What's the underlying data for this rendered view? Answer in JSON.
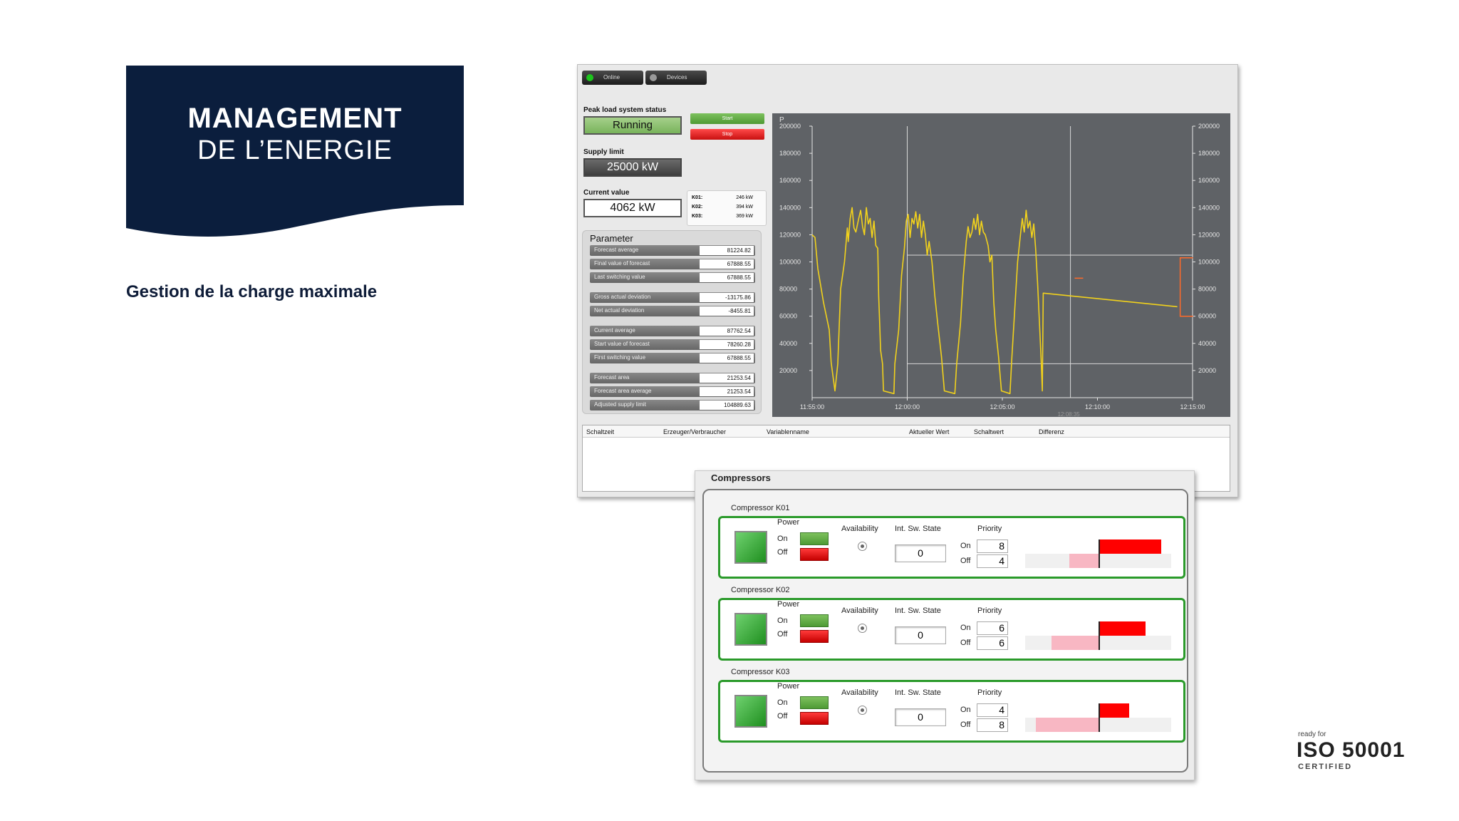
{
  "banner": {
    "line1": "MANAGEMENT",
    "line2": "DE L’ENERGIE",
    "color": "#0b1e3d"
  },
  "subtitle": "Gestion de la charge maximale",
  "iso": {
    "small": "ready for",
    "big": "ISO 50001",
    "certified": "CERTIFIED"
  },
  "app": {
    "topbar": [
      {
        "label": "Online",
        "dot": "#1dc41d"
      },
      {
        "label": "Devices",
        "dot": "#999999"
      }
    ],
    "status_label": "Peak load system status",
    "status_value": "Running",
    "start_label": "Start",
    "stop_label": "Stop",
    "supply_label": "Supply limit",
    "supply_value": "25000 kW",
    "current_label": "Current value",
    "current_value": "4062 kW",
    "k_values": [
      {
        "k": "K01:",
        "v": "246 kW"
      },
      {
        "k": "K02:",
        "v": "394 kW"
      },
      {
        "k": "K03:",
        "v": "369 kW"
      }
    ],
    "parameter_title": "Parameter",
    "parameters": [
      {
        "label": "Forecast average",
        "value": "81224.82"
      },
      {
        "label": "Final value of forecast",
        "value": "67888.55"
      },
      {
        "label": "Last switching value",
        "value": "67888.55"
      },
      {
        "label": "Gross actual deviation",
        "value": "-13175.86"
      },
      {
        "label": "Net actual deviation",
        "value": "-8455.81"
      },
      {
        "label": "Current average",
        "value": "87762.54"
      },
      {
        "label": "Start value of forecast",
        "value": "78260.28"
      },
      {
        "label": "First switching value",
        "value": "67888.55"
      },
      {
        "label": "Forecast area",
        "value": "21253.54"
      },
      {
        "label": "Forecast area average",
        "value": "21253.54"
      },
      {
        "label": "Adjusted supply limit",
        "value": "104889.63"
      }
    ],
    "table_headers": [
      "Schaltzeit",
      "Erzeuger/Verbraucher",
      "Variablenname",
      "Aktueller Wert",
      "Schaltwert",
      "Differenz"
    ]
  },
  "chart_data": {
    "type": "line",
    "ylabel": "P",
    "ylim": [
      0,
      200000
    ],
    "yticks": [
      200000,
      180000,
      160000,
      140000,
      120000,
      100000,
      80000,
      60000,
      40000,
      20000
    ],
    "xticks": [
      "11:55:00",
      "12:00:00",
      "12:05:00",
      "12:10:00",
      "12:15:00"
    ],
    "xlim_minutes": [
      0,
      20
    ],
    "cursor_label": "12:08:35",
    "upper_band": 105000,
    "lower_band": 25000,
    "series": [
      {
        "color": "#f2d21c",
        "points": [
          [
            0,
            120000
          ],
          [
            0.15,
            118000
          ],
          [
            0.3,
            95000
          ],
          [
            0.6,
            70000
          ],
          [
            0.9,
            50000
          ],
          [
            1.0,
            26000
          ],
          [
            1.2,
            5000
          ],
          [
            1.35,
            25000
          ],
          [
            1.5,
            80000
          ],
          [
            1.7,
            100000
          ],
          [
            1.85,
            125000
          ],
          [
            1.9,
            115000
          ],
          [
            2.0,
            132000
          ],
          [
            2.1,
            140000
          ],
          [
            2.2,
            125000
          ],
          [
            2.3,
            122000
          ],
          [
            2.45,
            132000
          ],
          [
            2.55,
            138000
          ],
          [
            2.65,
            126000
          ],
          [
            2.75,
            120000
          ],
          [
            2.85,
            140000
          ],
          [
            2.95,
            128000
          ],
          [
            3.05,
            132000
          ],
          [
            3.15,
            118000
          ],
          [
            3.25,
            130000
          ],
          [
            3.35,
            112000
          ],
          [
            3.45,
            110000
          ],
          [
            3.5,
            75000
          ],
          [
            3.55,
            55000
          ],
          [
            3.6,
            35000
          ],
          [
            3.7,
            25000
          ],
          [
            3.75,
            5000
          ],
          [
            4.3,
            3000
          ],
          [
            4.35,
            25000
          ],
          [
            4.55,
            50000
          ],
          [
            4.7,
            90000
          ],
          [
            4.85,
            110000
          ],
          [
            4.95,
            130000
          ],
          [
            5.05,
            135000
          ],
          [
            5.15,
            118000
          ],
          [
            5.25,
            132000
          ],
          [
            5.35,
            128000
          ],
          [
            5.45,
            137000
          ],
          [
            5.55,
            125000
          ],
          [
            5.65,
            135000
          ],
          [
            5.75,
            118000
          ],
          [
            5.85,
            130000
          ],
          [
            5.95,
            120000
          ],
          [
            6.05,
            105000
          ],
          [
            6.15,
            115000
          ],
          [
            6.3,
            100000
          ],
          [
            6.45,
            75000
          ],
          [
            6.6,
            55000
          ],
          [
            6.8,
            30000
          ],
          [
            6.95,
            5000
          ],
          [
            7.5,
            3000
          ],
          [
            7.6,
            25000
          ],
          [
            7.8,
            55000
          ],
          [
            7.95,
            90000
          ],
          [
            8.1,
            115000
          ],
          [
            8.2,
            126000
          ],
          [
            8.3,
            118000
          ],
          [
            8.4,
            122000
          ],
          [
            8.5,
            132000
          ],
          [
            8.6,
            124000
          ],
          [
            8.7,
            135000
          ],
          [
            8.8,
            120000
          ],
          [
            8.9,
            130000
          ],
          [
            9.0,
            122000
          ],
          [
            9.1,
            120000
          ],
          [
            9.25,
            112000
          ],
          [
            9.35,
            100000
          ],
          [
            9.45,
            105000
          ],
          [
            9.55,
            70000
          ],
          [
            9.65,
            50000
          ],
          [
            9.8,
            30000
          ],
          [
            9.95,
            5000
          ],
          [
            10.4,
            3000
          ],
          [
            10.5,
            30000
          ],
          [
            10.65,
            65000
          ],
          [
            10.8,
            100000
          ],
          [
            10.95,
            120000
          ],
          [
            11.05,
            132000
          ],
          [
            11.15,
            122000
          ],
          [
            11.25,
            138000
          ],
          [
            11.35,
            125000
          ],
          [
            11.45,
            130000
          ],
          [
            11.55,
            118000
          ],
          [
            11.65,
            128000
          ],
          [
            11.75,
            110000
          ],
          [
            11.85,
            85000
          ],
          [
            11.95,
            55000
          ],
          [
            12.05,
            25000
          ],
          [
            12.1,
            5000
          ],
          [
            12.15,
            77000
          ],
          [
            19.2,
            67000
          ]
        ]
      }
    ]
  },
  "compressors": {
    "title": "Compressors",
    "labels": {
      "power": "Power",
      "on": "On",
      "off": "Off",
      "availability": "Availability",
      "state": "Int. Sw. State",
      "priority": "Priority"
    },
    "units": [
      {
        "name": "Compressor K01",
        "state": "0",
        "prio_on": "8",
        "prio_off": "4",
        "bar_pos": 0.43,
        "bar_neg": -0.2
      },
      {
        "name": "Compressor K02",
        "state": "0",
        "prio_on": "6",
        "prio_off": "6",
        "bar_pos": 0.32,
        "bar_neg": -0.32
      },
      {
        "name": "Compressor K03",
        "state": "0",
        "prio_on": "4",
        "prio_off": "8",
        "bar_pos": 0.21,
        "bar_neg": -0.43
      }
    ]
  }
}
